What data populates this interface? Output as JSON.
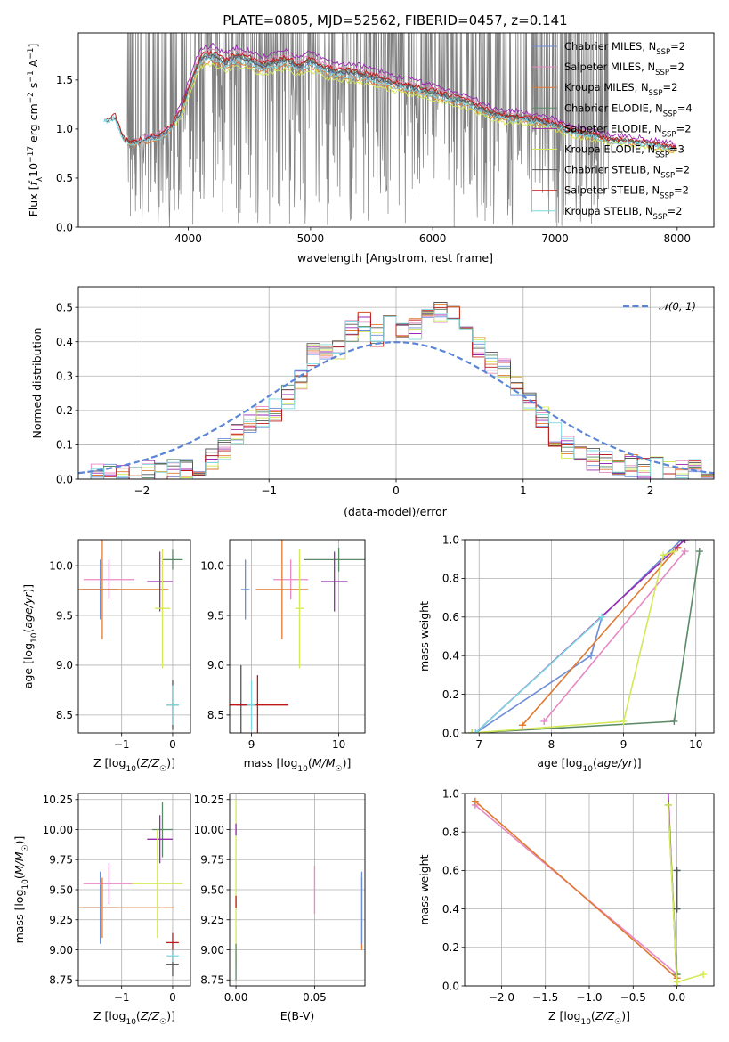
{
  "figure_title": "PLATE=0805, MJD=52562, FIBERID=0457, z=0.141",
  "colors": {
    "Chabrier MILES": "#6a8ed8",
    "Salpeter MILES": "#e78ac3",
    "Kroupa MILES": "#e07a32",
    "Chabrier ELODIE": "#5a8a66",
    "Salpeter ELODIE": "#9a2ab0",
    "Kroupa ELODIE": "#d4e858",
    "Chabrier STELIB": "#555555",
    "Salpeter STELIB": "#c01818",
    "Kroupa STELIB": "#7ed8e0",
    "data": "#808080",
    "normal": "#5b85d6"
  },
  "chart_data": [
    {
      "type": "line",
      "title": "PLATE=0805, MJD=52562, FIBERID=0457, z=0.141",
      "xlabel": "wavelength [Angstrom, rest frame]",
      "ylabel": "Flux [f_λ 10^-17 erg cm^-2 s^-1 A^-1]",
      "xlim": [
        3100,
        8300
      ],
      "ylim": [
        0,
        1.98
      ],
      "xticks": [
        "4000",
        "5000",
        "6000",
        "7000",
        "8000"
      ],
      "yticks": [
        "0.0",
        "0.5",
        "1.0",
        "1.5"
      ],
      "legend_position": "top-right",
      "series": [
        {
          "name": "Chabrier MILES, N_SSP=2",
          "sub": "SSP",
          "prefix": "Chabrier MILES, N",
          "suffix": "=2"
        },
        {
          "name": "Salpeter MILES, N_SSP=2",
          "sub": "SSP",
          "prefix": "Salpeter MILES, N",
          "suffix": "=2"
        },
        {
          "name": "Kroupa MILES, N_SSP=2",
          "sub": "SSP",
          "prefix": "Kroupa MILES, N",
          "suffix": "=2"
        },
        {
          "name": "Chabrier ELODIE, N_SSP=4",
          "sub": "SSP",
          "prefix": "Chabrier ELODIE, N",
          "suffix": "=4"
        },
        {
          "name": "Salpeter ELODIE, N_SSP=2",
          "sub": "SSP",
          "prefix": "Salpeter ELODIE, N",
          "suffix": "=2"
        },
        {
          "name": "Kroupa ELODIE, N_SSP=3",
          "sub": "SSP",
          "prefix": "Kroupa ELODIE, N",
          "suffix": "=3"
        },
        {
          "name": "Chabrier STELIB, N_SSP=2",
          "sub": "SSP",
          "prefix": "Chabrier STELIB, N",
          "suffix": "=2"
        },
        {
          "name": "Salpeter STELIB, N_SSP=2",
          "sub": "SSP",
          "prefix": "Salpeter STELIB, N",
          "suffix": "=2"
        },
        {
          "name": "Kroupa STELIB, N_SSP=2",
          "sub": "SSP",
          "prefix": "Kroupa STELIB, N",
          "suffix": "=2"
        }
      ],
      "continuum": {
        "x": [
          3310,
          3400,
          3480,
          3560,
          3650,
          3750,
          3850,
          3950,
          4000,
          4100,
          4200,
          4300,
          4400,
          4500,
          4600,
          4700,
          4800,
          4900,
          5000,
          5100,
          5200,
          5300,
          5400,
          5500,
          5600,
          5700,
          5800,
          5900,
          6000,
          6100,
          6200,
          6300,
          6400,
          6500,
          6600,
          6700,
          6800,
          6900,
          7000,
          7100,
          7200,
          7300,
          7400,
          7500,
          7600,
          7700,
          7800,
          7900,
          8000
        ],
        "y": [
          1.08,
          1.12,
          0.88,
          0.85,
          0.9,
          0.92,
          1.0,
          1.2,
          1.4,
          1.72,
          1.75,
          1.67,
          1.74,
          1.7,
          1.64,
          1.67,
          1.7,
          1.63,
          1.69,
          1.62,
          1.58,
          1.57,
          1.56,
          1.52,
          1.5,
          1.45,
          1.43,
          1.4,
          1.37,
          1.33,
          1.3,
          1.26,
          1.2,
          1.15,
          1.12,
          1.12,
          1.1,
          1.07,
          1.05,
          0.99,
          0.96,
          0.94,
          0.9,
          0.88,
          0.88,
          0.86,
          0.84,
          0.82,
          0.8
        ]
      }
    },
    {
      "type": "histogram",
      "xlabel": "(data-model)/error",
      "ylabel": "Normed distribution",
      "xlim": [
        -2.5,
        2.5
      ],
      "ylim": [
        0,
        0.56
      ],
      "xticks": [
        "−2",
        "−1",
        "0",
        "1",
        "2"
      ],
      "yticks": [
        "0.0",
        "0.1",
        "0.2",
        "0.3",
        "0.4",
        "0.5"
      ],
      "bins": {
        "start": -2.5,
        "width": 0.1
      },
      "legend_position": "top-right",
      "reference_curve": {
        "name": "N(0,1)",
        "label_main": "𝒩(0, 1)",
        "mean": 0,
        "sigma": 1
      },
      "hist_base": [
        0.01,
        0.01,
        0.01,
        0.01,
        0.02,
        0.02,
        0.02,
        0.03,
        0.03,
        0.03,
        0.06,
        0.09,
        0.13,
        0.17,
        0.18,
        0.2,
        0.24,
        0.29,
        0.36,
        0.37,
        0.38,
        0.43,
        0.46,
        0.42,
        0.45,
        0.42,
        0.44,
        0.5,
        0.49,
        0.47,
        0.43,
        0.38,
        0.34,
        0.32,
        0.27,
        0.22,
        0.18,
        0.13,
        0.09,
        0.07,
        0.06,
        0.05,
        0.04,
        0.04,
        0.03,
        0.03,
        0.02,
        0.02,
        0.03,
        0.02
      ]
    },
    {
      "type": "scatter",
      "xlabel": "Z [log10(Z/Z☉)]",
      "ylabel": "age  [log10(age/yr)]",
      "xlim": [
        -1.85,
        0.35
      ],
      "ylim": [
        8.32,
        10.26
      ],
      "xticks": [
        "−1",
        "0"
      ],
      "yticks": [
        "8.5",
        "9.0",
        "9.5",
        "10.0"
      ],
      "points": [
        {
          "model": "Chabrier MILES",
          "x": -1.42,
          "y": 9.76,
          "xerr": 0.35,
          "yerr": 0.3
        },
        {
          "model": "Salpeter MILES",
          "x": -1.25,
          "y": 9.86,
          "xerr": 0.5,
          "yerr": 0.2
        },
        {
          "model": "Kroupa MILES",
          "x": -1.38,
          "y": 9.76,
          "xerr": 1.3,
          "yerr": 0.5
        },
        {
          "model": "Chabrier ELODIE",
          "x": 0.0,
          "y": 10.06,
          "xerr": 0.2,
          "yerr": 0.1
        },
        {
          "model": "Salpeter ELODIE",
          "x": -0.25,
          "y": 9.84,
          "xerr": 0.25,
          "yerr": 0.3
        },
        {
          "model": "Kroupa ELODIE",
          "x": -0.2,
          "y": 9.57,
          "xerr": 0.15,
          "yerr": 0.6
        },
        {
          "model": "Chabrier STELIB",
          "x": 0.0,
          "y": 8.6,
          "xerr": 0.12,
          "yerr": 0.25
        },
        {
          "model": "Kroupa STELIB",
          "x": 0.0,
          "y": 8.6,
          "xerr": 0.12,
          "yerr": 0.2
        }
      ]
    },
    {
      "type": "scatter",
      "xlabel": "mass [log10(M/M☉)]",
      "ylabel": "",
      "xlim": [
        8.75,
        10.3
      ],
      "ylim": [
        8.32,
        10.26
      ],
      "xticks": [
        "9",
        "10"
      ],
      "yticks": [
        "8.5",
        "9.0",
        "9.5",
        "10.0"
      ],
      "points": [
        {
          "model": "Chabrier MILES",
          "x": 8.93,
          "y": 9.76,
          "xerr": 0.05,
          "yerr": 0.3
        },
        {
          "model": "Salpeter MILES",
          "x": 9.45,
          "y": 9.86,
          "xerr": 0.2,
          "yerr": 0.2
        },
        {
          "model": "Kroupa MILES",
          "x": 9.35,
          "y": 9.76,
          "xerr": 0.3,
          "yerr": 0.5
        },
        {
          "model": "Chabrier ELODIE",
          "x": 10.0,
          "y": 10.06,
          "xerr": 0.4,
          "yerr": 0.12
        },
        {
          "model": "Salpeter ELODIE",
          "x": 9.95,
          "y": 9.84,
          "xerr": 0.15,
          "yerr": 0.3
        },
        {
          "model": "Kroupa ELODIE",
          "x": 9.55,
          "y": 9.57,
          "xerr": 0.05,
          "yerr": 0.6
        },
        {
          "model": "Chabrier STELIB",
          "x": 8.88,
          "y": 8.6,
          "xerr": 0.05,
          "yerr": 0.4
        },
        {
          "model": "Salpeter STELIB",
          "x": 9.07,
          "y": 8.6,
          "xerr": 0.35,
          "yerr": 0.3
        },
        {
          "model": "Kroupa STELIB",
          "x": 9.0,
          "y": 8.6,
          "xerr": 0.05,
          "yerr": 0.25
        }
      ]
    },
    {
      "type": "line",
      "xlabel": "age  [log10(age/yr)]",
      "ylabel": "mass weight",
      "xlim": [
        6.8,
        10.25
      ],
      "ylim": [
        0,
        1.0
      ],
      "xticks": [
        "7",
        "8",
        "9",
        "10"
      ],
      "yticks": [
        "0.0",
        "0.2",
        "0.4",
        "0.6",
        "0.8",
        "1.0"
      ],
      "series": [
        {
          "model": "Chabrier MILES",
          "x": [
            6.95,
            8.55,
            8.7,
            9.8
          ],
          "y": [
            0.0,
            0.4,
            0.6,
            1.0
          ]
        },
        {
          "model": "Salpeter MILES",
          "x": [
            7.9,
            9.85
          ],
          "y": [
            0.06,
            0.94
          ]
        },
        {
          "model": "Kroupa MILES",
          "x": [
            7.6,
            9.75
          ],
          "y": [
            0.04,
            0.96
          ]
        },
        {
          "model": "Chabrier ELODIE",
          "x": [
            6.9,
            9.7,
            10.05
          ],
          "y": [
            0.0,
            0.06,
            0.94
          ]
        },
        {
          "model": "Salpeter ELODIE",
          "x": [
            6.95,
            9.85
          ],
          "y": [
            0.0,
            1.0
          ]
        },
        {
          "model": "Kroupa ELODIE",
          "x": [
            6.9,
            9.0,
            9.55,
            9.7
          ],
          "y": [
            0.0,
            0.06,
            0.92,
            0.94
          ]
        },
        {
          "model": "Kroupa STELIB",
          "x": [
            6.95,
            8.7
          ],
          "y": [
            0.0,
            0.6
          ]
        }
      ]
    },
    {
      "type": "scatter",
      "xlabel": "Z [log10(Z/Z☉)]",
      "ylabel": "mass [log10(M/M☉)]",
      "xlim": [
        -1.85,
        0.35
      ],
      "ylim": [
        8.7,
        10.3
      ],
      "xticks": [
        "−1",
        "0"
      ],
      "yticks": [
        "8.75",
        "9.00",
        "9.25",
        "9.50",
        "9.75",
        "10.00",
        "10.25"
      ],
      "points": [
        {
          "model": "Chabrier MILES",
          "x": -1.42,
          "y": 9.35,
          "xerr": 0.35,
          "yerr": 0.3
        },
        {
          "model": "Salpeter MILES",
          "x": -1.25,
          "y": 9.55,
          "xerr": 0.5,
          "yerr": 0.17
        },
        {
          "model": "Kroupa MILES",
          "x": -1.38,
          "y": 9.35,
          "xerr": 1.4,
          "yerr": 0.25
        },
        {
          "model": "Chabrier ELODIE",
          "x": -0.2,
          "y": 10.0,
          "xerr": 0.2,
          "yerr": 0.23
        },
        {
          "model": "Salpeter ELODIE",
          "x": -0.25,
          "y": 9.92,
          "xerr": 0.25,
          "yerr": 0.2
        },
        {
          "model": "Kroupa ELODIE",
          "x": -0.3,
          "y": 9.55,
          "xerr": 0.5,
          "yerr": 0.45
        },
        {
          "model": "Chabrier STELIB",
          "x": 0.0,
          "y": 8.88,
          "xerr": 0.12,
          "yerr": 0.1
        },
        {
          "model": "Salpeter STELIB",
          "x": 0.0,
          "y": 9.06,
          "xerr": 0.12,
          "yerr": 0.08
        },
        {
          "model": "Kroupa STELIB",
          "x": 0.0,
          "y": 8.95,
          "xerr": 0.12,
          "yerr": 0.05
        }
      ]
    },
    {
      "type": "scatter",
      "xlabel": "E(B-V)",
      "ylabel": "",
      "xlim": [
        -0.004,
        0.082
      ],
      "ylim": [
        8.7,
        10.3
      ],
      "xticks": [
        "0.00",
        "0.05"
      ],
      "yticks": [
        "8.75",
        "9.00",
        "9.25",
        "9.50",
        "9.75",
        "10.00",
        "10.25"
      ],
      "points": [
        {
          "model": "Kroupa ELODIE",
          "x": 0.0,
          "y": 9.55,
          "xerr": 0,
          "yerr": 0.7
        },
        {
          "model": "Salpeter ELODIE",
          "x": 0.0,
          "y": 10.0,
          "xerr": 0,
          "yerr": 0.05
        },
        {
          "model": "Salpeter STELIB",
          "x": 0.0,
          "y": 9.4,
          "xerr": 0,
          "yerr": 0.05
        },
        {
          "model": "Chabrier ELODIE",
          "x": 0.0,
          "y": 8.9,
          "xerr": 0,
          "yerr": 0.15
        },
        {
          "model": "Salpeter MILES",
          "x": 0.05,
          "y": 9.5,
          "xerr": 0,
          "yerr": 0.2
        },
        {
          "model": "Kroupa MILES",
          "x": 0.08,
          "y": 9.3,
          "xerr": 0,
          "yerr": 0.3
        },
        {
          "model": "Chabrier MILES",
          "x": 0.08,
          "y": 9.35,
          "xerr": 0,
          "yerr": 0.3
        }
      ]
    },
    {
      "type": "line",
      "xlabel": "Z [log10(Z/Z☉)]",
      "ylabel": "mass weight",
      "xlim": [
        -2.42,
        0.42
      ],
      "ylim": [
        0,
        1.0
      ],
      "xticks": [
        "−2.0",
        "−1.5",
        "−1.0",
        "−0.5",
        "0.0"
      ],
      "yticks": [
        "0.0",
        "0.2",
        "0.4",
        "0.6",
        "0.8",
        "1.0"
      ],
      "series": [
        {
          "model": "Salpeter MILES",
          "x": [
            -2.3,
            0.0
          ],
          "y": [
            0.94,
            0.06
          ]
        },
        {
          "model": "Kroupa MILES",
          "x": [
            -2.3,
            0.0
          ],
          "y": [
            0.96,
            0.04
          ]
        },
        {
          "model": "Salpeter ELODIE",
          "x": [
            -0.1,
            0.0
          ],
          "y": [
            1.0,
            0.0
          ]
        },
        {
          "model": "Chabrier ELODIE",
          "x": [
            -0.1,
            0.0
          ],
          "y": [
            0.94,
            0.06
          ]
        },
        {
          "model": "Kroupa ELODIE",
          "x": [
            -0.1,
            0.0,
            0.3
          ],
          "y": [
            0.94,
            0.02,
            0.06
          ]
        },
        {
          "model": "Kroupa STELIB",
          "x": [
            0.0,
            0.0
          ],
          "y": [
            0.6,
            0.4
          ]
        },
        {
          "model": "Chabrier STELIB",
          "x": [
            0.0,
            0.0
          ],
          "y": [
            0.6,
            0.4
          ]
        }
      ]
    }
  ]
}
